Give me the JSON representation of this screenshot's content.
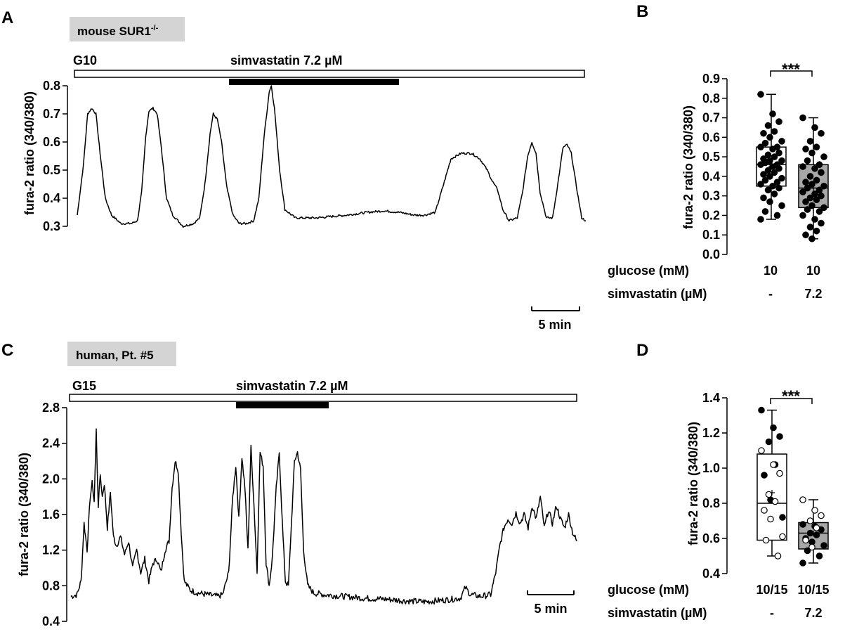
{
  "panels": {
    "A": {
      "label": "A",
      "badge": "mouse SUR1",
      "badge_sup": "-/-",
      "baseline_label": "G10",
      "drug_label": "simvastatin 7.2 µM",
      "scale_label": "5 min",
      "ylabel": "fura-2 ratio (340/380)",
      "yticks": [
        "0.3",
        "0.4",
        "0.5",
        "0.6",
        "0.7",
        "0.8"
      ],
      "ylim": [
        0.3,
        0.8
      ]
    },
    "B": {
      "label": "B",
      "ylabel": "fura-2 ratio (340/380)",
      "yticks": [
        "0.0",
        "0.1",
        "0.2",
        "0.3",
        "0.4",
        "0.5",
        "0.6",
        "0.7",
        "0.8",
        "0.9"
      ],
      "significance": "***",
      "row1_label": "glucose (mM)",
      "row2_label": "simvastatin (µM)",
      "groups": [
        {
          "glucose": "10",
          "simvastatin": "-",
          "fill": "#ffffff"
        },
        {
          "glucose": "10",
          "simvastatin": "7.2",
          "fill": "#a8a8a8"
        }
      ]
    },
    "C": {
      "label": "C",
      "badge": "human, Pt. #5",
      "baseline_label": "G15",
      "drug_label": "simvastatin 7.2 µM",
      "scale_label": "5 min",
      "ylabel": "fura-2 ratio (340/380)",
      "yticks": [
        "0.4",
        "0.8",
        "1.2",
        "1.6",
        "2.0",
        "2.4",
        "2.8"
      ],
      "ylim": [
        0.4,
        2.8
      ]
    },
    "D": {
      "label": "D",
      "ylabel": "fura-2 ratio (340/380)",
      "yticks": [
        "0.4",
        "0.6",
        "0.8",
        "1.0",
        "1.2",
        "1.4"
      ],
      "significance": "***",
      "row1_label": "glucose (mM)",
      "row2_label": "simvastatin (µM)",
      "groups": [
        {
          "glucose": "10/15",
          "simvastatin": "-",
          "fill": "#ffffff"
        },
        {
          "glucose": "10/15",
          "simvastatin": "7.2",
          "fill": "#a8a8a8"
        }
      ]
    }
  },
  "chart_data": [
    {
      "panel": "A",
      "type": "line",
      "xlabel": "",
      "ylabel": "fura-2 ratio (340/380)",
      "ylim": [
        0.3,
        0.8
      ],
      "x_unit": "min",
      "xlim": [
        0,
        49
      ],
      "treatment_window_min": [
        14.8,
        31.2
      ],
      "series": [
        {
          "points": [
            [
              0,
              0.34
            ],
            [
              0.6,
              0.52
            ],
            [
              1.0,
              0.7
            ],
            [
              1.4,
              0.72
            ],
            [
              1.8,
              0.7
            ],
            [
              2.2,
              0.56
            ],
            [
              2.7,
              0.4
            ],
            [
              3.3,
              0.34
            ],
            [
              4.2,
              0.31
            ],
            [
              5.2,
              0.31
            ],
            [
              5.8,
              0.32
            ],
            [
              6.2,
              0.42
            ],
            [
              6.6,
              0.62
            ],
            [
              6.9,
              0.71
            ],
            [
              7.3,
              0.72
            ],
            [
              7.7,
              0.7
            ],
            [
              8.1,
              0.58
            ],
            [
              8.6,
              0.4
            ],
            [
              9.2,
              0.34
            ],
            [
              10.2,
              0.3
            ],
            [
              11.2,
              0.31
            ],
            [
              11.8,
              0.33
            ],
            [
              12.3,
              0.45
            ],
            [
              12.8,
              0.63
            ],
            [
              13.1,
              0.7
            ],
            [
              13.5,
              0.68
            ],
            [
              13.9,
              0.6
            ],
            [
              14.4,
              0.44
            ],
            [
              15.0,
              0.34
            ],
            [
              15.6,
              0.31
            ],
            [
              16.3,
              0.31
            ],
            [
              17.0,
              0.32
            ],
            [
              17.5,
              0.4
            ],
            [
              18.0,
              0.62
            ],
            [
              18.5,
              0.78
            ],
            [
              18.7,
              0.8
            ],
            [
              19.0,
              0.72
            ],
            [
              19.5,
              0.5
            ],
            [
              20.0,
              0.36
            ],
            [
              21.0,
              0.33
            ],
            [
              23.0,
              0.33
            ],
            [
              26.0,
              0.34
            ],
            [
              28.0,
              0.35
            ],
            [
              29.5,
              0.355
            ],
            [
              31.0,
              0.35
            ],
            [
              32.5,
              0.34
            ],
            [
              33.5,
              0.34
            ],
            [
              34.5,
              0.35
            ],
            [
              35.3,
              0.45
            ],
            [
              36.0,
              0.54
            ],
            [
              37.0,
              0.56
            ],
            [
              38.0,
              0.56
            ],
            [
              38.8,
              0.54
            ],
            [
              39.5,
              0.5
            ],
            [
              40.0,
              0.46
            ],
            [
              40.5,
              0.43
            ],
            [
              41.0,
              0.36
            ],
            [
              41.6,
              0.32
            ],
            [
              42.4,
              0.33
            ],
            [
              42.9,
              0.42
            ],
            [
              43.4,
              0.55
            ],
            [
              43.8,
              0.6
            ],
            [
              44.2,
              0.56
            ],
            [
              44.6,
              0.42
            ],
            [
              45.2,
              0.33
            ],
            [
              45.8,
              0.33
            ],
            [
              46.3,
              0.45
            ],
            [
              46.8,
              0.58
            ],
            [
              47.2,
              0.59
            ],
            [
              47.6,
              0.56
            ],
            [
              48.1,
              0.44
            ],
            [
              48.6,
              0.33
            ],
            [
              49.0,
              0.32
            ]
          ]
        }
      ]
    },
    {
      "panel": "B",
      "type": "box",
      "ylabel": "fura-2 ratio (340/380)",
      "ylim": [
        0,
        0.9
      ],
      "categories": [
        "10 / -",
        "10 / 7.2"
      ],
      "boxes": [
        {
          "min": 0.18,
          "q1": 0.35,
          "median": 0.46,
          "mean": 0.45,
          "q3": 0.55,
          "max": 0.82,
          "points": [
            0.82,
            0.72,
            0.68,
            0.66,
            0.63,
            0.62,
            0.6,
            0.58,
            0.57,
            0.55,
            0.55,
            0.54,
            0.52,
            0.51,
            0.5,
            0.49,
            0.48,
            0.48,
            0.47,
            0.46,
            0.46,
            0.45,
            0.44,
            0.43,
            0.42,
            0.41,
            0.4,
            0.39,
            0.38,
            0.37,
            0.36,
            0.35,
            0.34,
            0.33,
            0.31,
            0.29,
            0.27,
            0.25,
            0.22,
            0.2,
            0.18
          ]
        },
        {
          "min": 0.08,
          "q1": 0.24,
          "median": 0.34,
          "mean": 0.34,
          "q3": 0.46,
          "max": 0.7,
          "points": [
            0.7,
            0.65,
            0.62,
            0.58,
            0.55,
            0.54,
            0.52,
            0.5,
            0.48,
            0.46,
            0.45,
            0.44,
            0.42,
            0.4,
            0.38,
            0.37,
            0.36,
            0.35,
            0.34,
            0.33,
            0.32,
            0.31,
            0.3,
            0.29,
            0.28,
            0.27,
            0.25,
            0.24,
            0.23,
            0.22,
            0.2,
            0.18,
            0.16,
            0.14,
            0.12,
            0.1,
            0.08
          ]
        }
      ]
    },
    {
      "panel": "C",
      "type": "line",
      "xlabel": "",
      "ylabel": "fura-2 ratio (340/380)",
      "ylim": [
        0.4,
        2.8
      ],
      "x_unit": "min",
      "xlim": [
        0,
        50
      ],
      "treatment_window_min": [
        16.5,
        25.5
      ],
      "series": [
        {
          "points": [
            [
              0,
              0.68
            ],
            [
              0.6,
              0.7
            ],
            [
              1.0,
              0.85
            ],
            [
              1.3,
              1.5
            ],
            [
              1.6,
              1.2
            ],
            [
              1.9,
              1.8
            ],
            [
              2.1,
              1.95
            ],
            [
              2.3,
              1.75
            ],
            [
              2.5,
              2.55
            ],
            [
              2.7,
              1.7
            ],
            [
              2.9,
              2.05
            ],
            [
              3.1,
              1.8
            ],
            [
              3.3,
              1.95
            ],
            [
              3.6,
              1.45
            ],
            [
              3.9,
              1.85
            ],
            [
              4.2,
              1.35
            ],
            [
              4.5,
              1.25
            ],
            [
              4.9,
              1.35
            ],
            [
              5.3,
              1.15
            ],
            [
              5.7,
              1.3
            ],
            [
              6.1,
              1.0
            ],
            [
              6.5,
              1.2
            ],
            [
              6.9,
              0.95
            ],
            [
              7.3,
              1.1
            ],
            [
              7.7,
              0.85
            ],
            [
              8.1,
              1.05
            ],
            [
              8.5,
              1.1
            ],
            [
              8.9,
              0.95
            ],
            [
              9.3,
              1.2
            ],
            [
              9.7,
              1.3
            ],
            [
              10.0,
              1.9
            ],
            [
              10.3,
              2.2
            ],
            [
              10.6,
              2.1
            ],
            [
              10.9,
              1.4
            ],
            [
              11.2,
              0.85
            ],
            [
              11.8,
              0.75
            ],
            [
              12.5,
              0.72
            ],
            [
              13.5,
              0.7
            ],
            [
              14.5,
              0.68
            ],
            [
              15.0,
              0.7
            ],
            [
              15.6,
              0.95
            ],
            [
              16.0,
              1.8
            ],
            [
              16.3,
              2.15
            ],
            [
              16.6,
              1.55
            ],
            [
              16.9,
              2.25
            ],
            [
              17.2,
              1.9
            ],
            [
              17.5,
              1.2
            ],
            [
              17.8,
              2.35
            ],
            [
              18.1,
              1.7
            ],
            [
              18.4,
              0.95
            ],
            [
              18.7,
              2.3
            ],
            [
              19.0,
              2.15
            ],
            [
              19.3,
              1.05
            ],
            [
              19.6,
              0.8
            ],
            [
              19.9,
              1.1
            ],
            [
              20.3,
              1.9
            ],
            [
              20.6,
              2.3
            ],
            [
              20.9,
              1.5
            ],
            [
              21.2,
              0.85
            ],
            [
              21.5,
              0.8
            ],
            [
              21.8,
              1.5
            ],
            [
              22.1,
              2.2
            ],
            [
              22.4,
              2.3
            ],
            [
              22.7,
              2.1
            ],
            [
              23.0,
              1.2
            ],
            [
              23.4,
              0.8
            ],
            [
              24.0,
              0.72
            ],
            [
              25.0,
              0.7
            ],
            [
              27.0,
              0.68
            ],
            [
              29.0,
              0.66
            ],
            [
              31.0,
              0.65
            ],
            [
              33.0,
              0.63
            ],
            [
              35.0,
              0.62
            ],
            [
              37.0,
              0.64
            ],
            [
              38.5,
              0.66
            ],
            [
              39.0,
              0.78
            ],
            [
              39.5,
              0.7
            ],
            [
              40.5,
              0.68
            ],
            [
              41.5,
              0.7
            ],
            [
              42.0,
              0.95
            ],
            [
              42.4,
              1.25
            ],
            [
              42.8,
              1.45
            ],
            [
              43.2,
              1.55
            ],
            [
              43.6,
              1.5
            ],
            [
              44.0,
              1.62
            ],
            [
              44.4,
              1.5
            ],
            [
              44.8,
              1.6
            ],
            [
              45.2,
              1.45
            ],
            [
              45.6,
              1.7
            ],
            [
              46.0,
              1.55
            ],
            [
              46.4,
              1.8
            ],
            [
              46.8,
              1.45
            ],
            [
              47.2,
              1.65
            ],
            [
              47.6,
              1.5
            ],
            [
              48.0,
              1.7
            ],
            [
              48.4,
              1.55
            ],
            [
              48.8,
              1.45
            ],
            [
              49.2,
              1.6
            ],
            [
              49.6,
              1.4
            ],
            [
              50.0,
              1.3
            ]
          ]
        }
      ]
    },
    {
      "panel": "D",
      "type": "box",
      "ylabel": "fura-2 ratio (340/380)",
      "ylim": [
        0.4,
        1.4
      ],
      "categories": [
        "10/15 / -",
        "10/15 / 7.2"
      ],
      "boxes": [
        {
          "min": 0.5,
          "q1": 0.59,
          "median": 0.8,
          "mean": 0.86,
          "q3": 1.08,
          "max": 1.33,
          "points_filled": [
            1.33,
            1.23,
            1.18,
            1.15,
            1.02,
            0.96,
            0.82,
            0.72
          ],
          "points_open": [
            1.1,
            1.02,
            0.97,
            0.85,
            0.81,
            0.76,
            0.71,
            0.61,
            0.59,
            0.5
          ]
        },
        {
          "min": 0.46,
          "q1": 0.54,
          "median": 0.63,
          "mean": 0.63,
          "q3": 0.69,
          "max": 0.82,
          "points_filled": [
            0.68,
            0.67,
            0.65,
            0.63,
            0.62,
            0.6,
            0.58,
            0.56,
            0.53,
            0.5,
            0.46
          ],
          "points_open": [
            0.82,
            0.76,
            0.73,
            0.7,
            0.66,
            0.59,
            0.55
          ]
        }
      ]
    }
  ]
}
